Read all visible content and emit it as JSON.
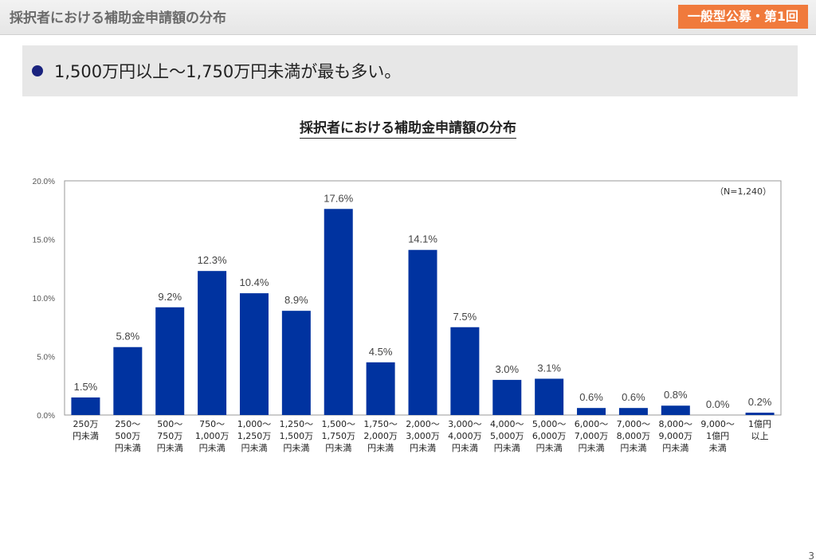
{
  "header": {
    "title": "採択者における補助金申請額の分布",
    "badge": "一般型公募・第1回"
  },
  "summary": {
    "text": "1,500万円以上～1,750万円未満が最も多い。"
  },
  "page_number": "3",
  "colors": {
    "bar": "#0033a0",
    "badge": "#f07a3c",
    "bullet": "#1a237e"
  },
  "chart_data": {
    "type": "bar",
    "title": "採択者における補助金申請額の分布",
    "annotation": "（N=1,240）",
    "ylim": [
      0,
      20
    ],
    "yticks": [
      "0.0%",
      "5.0%",
      "10.0%",
      "15.0%",
      "20.0%"
    ],
    "grid": false,
    "categories": [
      [
        "250万",
        "円未満"
      ],
      [
        "250～",
        "500万",
        "円未満"
      ],
      [
        "500～",
        "750万",
        "円未満"
      ],
      [
        "750～",
        "1,000万",
        "円未満"
      ],
      [
        "1,000～",
        "1,250万",
        "円未満"
      ],
      [
        "1,250～",
        "1,500万",
        "円未満"
      ],
      [
        "1,500～",
        "1,750万",
        "円未満"
      ],
      [
        "1,750～",
        "2,000万",
        "円未満"
      ],
      [
        "2,000～",
        "3,000万",
        "円未満"
      ],
      [
        "3,000～",
        "4,000万",
        "円未満"
      ],
      [
        "4,000～",
        "5,000万",
        "円未満"
      ],
      [
        "5,000～",
        "6,000万",
        "円未満"
      ],
      [
        "6,000～",
        "7,000万",
        "円未満"
      ],
      [
        "7,000～",
        "8,000万",
        "円未満"
      ],
      [
        "8,000～",
        "9,000万",
        "円未満"
      ],
      [
        "9,000～",
        "1億円",
        "未満"
      ],
      [
        "1億円",
        "以上"
      ]
    ],
    "values": [
      1.5,
      5.8,
      9.2,
      12.3,
      10.4,
      8.9,
      17.6,
      4.5,
      14.1,
      7.5,
      3.0,
      3.1,
      0.6,
      0.6,
      0.8,
      0.0,
      0.2
    ],
    "value_labels": [
      "1.5%",
      "5.8%",
      "9.2%",
      "12.3%",
      "10.4%",
      "8.9%",
      "17.6%",
      "4.5%",
      "14.1%",
      "7.5%",
      "3.0%",
      "3.1%",
      "0.6%",
      "0.6%",
      "0.8%",
      "0.0%",
      "0.2%"
    ]
  }
}
